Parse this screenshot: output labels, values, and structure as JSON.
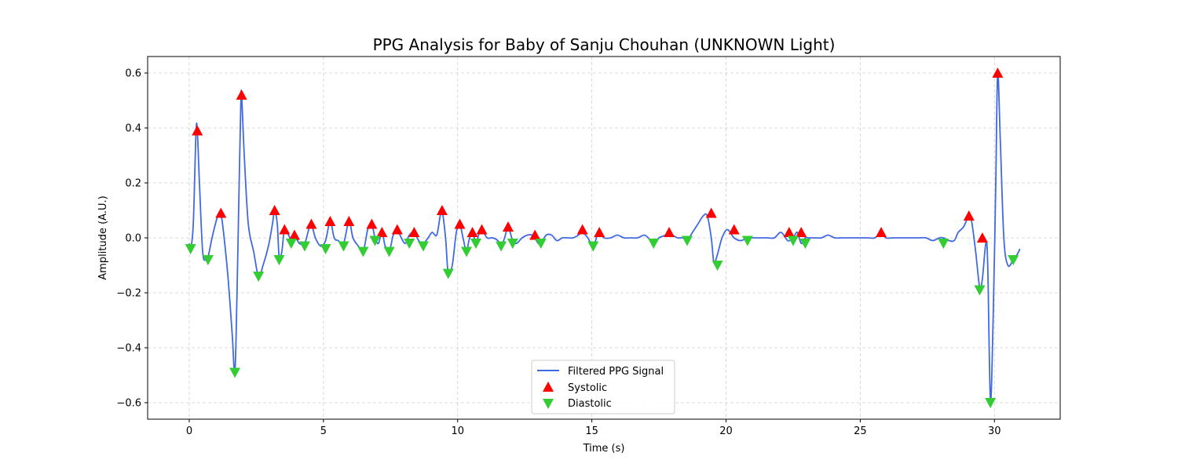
{
  "chart_data": {
    "type": "line",
    "title": "PPG Analysis for Baby of Sanju Chouhan (UNKNOWN Light)",
    "xlabel": "Time (s)",
    "ylabel": "Amplitude (A.U.)",
    "xlim": [
      -1.55,
      32.45
    ],
    "ylim": [
      -0.66,
      0.66
    ],
    "xticks": [
      0,
      5,
      10,
      15,
      20,
      25,
      30
    ],
    "yticks": [
      -0.6,
      -0.4,
      -0.2,
      0.0,
      0.2,
      0.4,
      0.6
    ],
    "xtick_labels": [
      "0",
      "5",
      "10",
      "15",
      "20",
      "25",
      "30"
    ],
    "ytick_labels": [
      "−0.6",
      "−0.4",
      "−0.2",
      "0.0",
      "0.2",
      "0.4",
      "0.6"
    ],
    "grid": true,
    "legend_position": "lower-center",
    "colors": {
      "signal": "#4169e1",
      "systolic": "#ff0000",
      "diastolic": "#32cd32"
    },
    "series": [
      {
        "name": "Filtered PPG Signal",
        "type": "line",
        "x": [
          0.0,
          0.05,
          0.15,
          0.25,
          0.3,
          0.38,
          0.5,
          0.62,
          0.7,
          0.85,
          1.0,
          1.1,
          1.18,
          1.3,
          1.45,
          1.6,
          1.7,
          1.78,
          1.85,
          1.92,
          1.95,
          2.05,
          2.2,
          2.4,
          2.58,
          2.75,
          2.95,
          3.1,
          3.18,
          3.28,
          3.35,
          3.45,
          3.55,
          3.7,
          3.8,
          3.92,
          4.1,
          4.3,
          4.45,
          4.55,
          4.7,
          4.9,
          5.08,
          5.25,
          5.4,
          5.55,
          5.75,
          5.95,
          6.1,
          6.3,
          6.48,
          6.65,
          6.8,
          6.92,
          7.05,
          7.18,
          7.3,
          7.45,
          7.6,
          7.75,
          7.9,
          8.05,
          8.2,
          8.38,
          8.55,
          8.72,
          8.9,
          9.05,
          9.22,
          9.35,
          9.42,
          9.55,
          9.65,
          9.8,
          9.95,
          10.08,
          10.2,
          10.33,
          10.42,
          10.55,
          10.68,
          10.78,
          10.9,
          11.1,
          11.3,
          11.5,
          11.62,
          11.75,
          11.88,
          12.05,
          12.2,
          12.4,
          12.6,
          12.78,
          12.88,
          13.0,
          13.1,
          13.3,
          13.5,
          13.7,
          13.9,
          14.1,
          14.3,
          14.5,
          14.65,
          14.85,
          15.05,
          15.2,
          15.28,
          15.45,
          15.7,
          15.95,
          16.2,
          16.45,
          16.7,
          16.95,
          17.1,
          17.3,
          17.5,
          17.75,
          17.88,
          18.0,
          18.2,
          18.4,
          18.55,
          18.75,
          18.95,
          19.15,
          19.3,
          19.45,
          19.55,
          19.68,
          19.85,
          20.05,
          20.3,
          20.55,
          20.8,
          21.05,
          21.3,
          21.55,
          21.8,
          22.05,
          22.3,
          22.5,
          22.65,
          22.8,
          22.95,
          23.1,
          23.3,
          23.55,
          23.8,
          24.05,
          24.3,
          24.55,
          24.8,
          25.05,
          25.3,
          25.55,
          25.78,
          25.95,
          26.2,
          26.45,
          26.7,
          26.95,
          27.2,
          27.45,
          27.7,
          27.95,
          28.1,
          28.3,
          28.5,
          28.65,
          28.85,
          29.05,
          29.15,
          29.3,
          29.45,
          29.55,
          29.68,
          29.75,
          29.85,
          29.95,
          30.05,
          30.12,
          30.22,
          30.35,
          30.5,
          30.7,
          30.85,
          30.95
        ],
        "y": [
          -0.02,
          -0.04,
          0.05,
          0.38,
          0.39,
          0.2,
          -0.05,
          -0.08,
          -0.07,
          0.0,
          0.06,
          0.09,
          0.09,
          0.0,
          -0.15,
          -0.35,
          -0.49,
          -0.2,
          0.15,
          0.48,
          0.52,
          0.3,
          0.05,
          -0.05,
          -0.14,
          -0.1,
          -0.03,
          0.05,
          0.1,
          0.05,
          -0.07,
          -0.05,
          0.03,
          0.01,
          -0.01,
          0.01,
          -0.02,
          -0.02,
          0.03,
          0.05,
          0.0,
          -0.03,
          -0.01,
          0.06,
          0.0,
          -0.01,
          -0.02,
          0.06,
          0.0,
          -0.03,
          -0.05,
          0.03,
          0.05,
          0.0,
          -0.02,
          0.02,
          -0.03,
          -0.05,
          0.01,
          0.03,
          0.0,
          -0.02,
          0.01,
          0.02,
          -0.01,
          -0.02,
          0.0,
          0.02,
          0.01,
          0.08,
          0.1,
          0.0,
          -0.13,
          -0.1,
          0.02,
          0.05,
          0.0,
          -0.05,
          -0.01,
          0.02,
          -0.02,
          0.01,
          0.03,
          0.0,
          0.0,
          -0.01,
          -0.03,
          0.0,
          0.04,
          -0.01,
          -0.02,
          0.0,
          0.01,
          0.01,
          0.0,
          -0.02,
          -0.02,
          0.01,
          0.01,
          -0.01,
          0.0,
          0.0,
          0.0,
          0.01,
          0.02,
          0.0,
          -0.03,
          0.01,
          0.02,
          0.0,
          0.0,
          0.01,
          0.0,
          0.0,
          0.0,
          0.01,
          0.0,
          -0.02,
          0.0,
          0.01,
          0.02,
          0.01,
          0.0,
          0.0,
          -0.01,
          0.02,
          0.05,
          0.08,
          0.08,
          0.0,
          -0.09,
          -0.06,
          0.0,
          0.03,
          0.0,
          -0.01,
          0.0,
          0.0,
          0.0,
          0.0,
          0.0,
          0.02,
          -0.01,
          0.0,
          0.02,
          -0.02,
          0.0,
          0.0,
          0.0,
          0.0,
          0.01,
          0.0,
          0.0,
          0.0,
          0.0,
          0.0,
          0.0,
          0.0,
          0.02,
          0.0,
          0.0,
          0.0,
          0.0,
          0.0,
          0.0,
          0.0,
          -0.01,
          0.0,
          0.0,
          -0.01,
          -0.01,
          0.02,
          0.04,
          0.08,
          0.06,
          -0.05,
          -0.18,
          -0.15,
          -0.02,
          -0.1,
          -0.59,
          -0.3,
          0.2,
          0.6,
          0.35,
          0.0,
          -0.1,
          -0.08,
          -0.06,
          -0.04
        ]
      },
      {
        "name": "Systolic",
        "type": "scatter",
        "marker": "triangle-up",
        "x": [
          0.3,
          1.18,
          1.95,
          3.18,
          3.55,
          3.92,
          4.55,
          5.25,
          5.95,
          6.8,
          7.18,
          7.75,
          8.38,
          9.42,
          10.08,
          10.55,
          10.9,
          11.88,
          12.88,
          14.65,
          15.28,
          17.88,
          19.45,
          20.3,
          22.35,
          22.8,
          25.78,
          29.05,
          29.55,
          30.12
        ],
        "y": [
          0.39,
          0.09,
          0.52,
          0.1,
          0.03,
          0.01,
          0.05,
          0.06,
          0.06,
          0.05,
          0.02,
          0.03,
          0.02,
          0.1,
          0.05,
          0.02,
          0.03,
          0.04,
          0.01,
          0.03,
          0.02,
          0.02,
          0.09,
          0.03,
          0.02,
          0.02,
          0.02,
          0.08,
          0.0,
          0.6
        ]
      },
      {
        "name": "Diastolic",
        "type": "scatter",
        "marker": "triangle-down",
        "x": [
          0.05,
          0.7,
          1.7,
          2.58,
          3.35,
          3.8,
          4.3,
          5.08,
          5.75,
          6.48,
          6.92,
          7.45,
          8.2,
          8.72,
          9.65,
          10.33,
          10.68,
          11.62,
          12.05,
          13.1,
          15.05,
          17.3,
          18.55,
          19.68,
          20.8,
          22.5,
          22.95,
          28.1,
          29.45,
          29.85,
          30.7
        ],
        "y": [
          -0.04,
          -0.08,
          -0.49,
          -0.14,
          -0.08,
          -0.02,
          -0.03,
          -0.04,
          -0.03,
          -0.05,
          -0.01,
          -0.05,
          -0.02,
          -0.03,
          -0.13,
          -0.05,
          -0.02,
          -0.03,
          -0.02,
          -0.02,
          -0.03,
          -0.02,
          -0.01,
          -0.1,
          -0.01,
          -0.01,
          -0.02,
          -0.02,
          -0.19,
          -0.6,
          -0.08
        ]
      }
    ],
    "legend": [
      "Filtered PPG Signal",
      "Systolic",
      "Diastolic"
    ]
  }
}
